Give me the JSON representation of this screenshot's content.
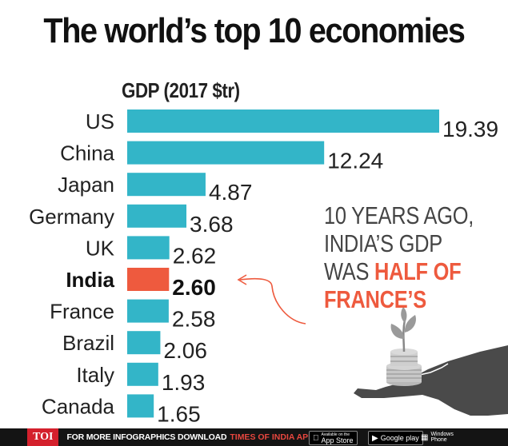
{
  "title": "The world’s top 10 economies",
  "chart_data": {
    "type": "bar",
    "orientation": "horizontal",
    "ylabel": "GDP (2017 $tr)",
    "categories": [
      "US",
      "China",
      "Japan",
      "Germany",
      "UK",
      "India",
      "France",
      "Brazil",
      "Italy",
      "Canada"
    ],
    "values": [
      19.39,
      12.24,
      4.87,
      3.68,
      2.62,
      2.6,
      2.58,
      2.06,
      1.93,
      1.65
    ],
    "value_labels": [
      "19.39",
      "12.24",
      "4.87",
      "3.68",
      "2.62",
      "2.60",
      "2.58",
      "2.06",
      "1.93",
      "1.65"
    ],
    "highlight": "India",
    "bar_color": "#33b5c8",
    "highlight_color": "#ee5a3e",
    "xlim": [
      0,
      19.39
    ]
  },
  "annotation": {
    "line1": "10 YEARS AGO,",
    "line2": "INDIA’S GDP",
    "line3_normal": "WAS ",
    "line3_highlight": "HALF OF",
    "line4_highlight": "FRANCE’S"
  },
  "footer": {
    "logo": "TOI",
    "text": "FOR MORE  INFOGRAPHICS DOWNLOAD",
    "brand": "TIMES OF INDIA APP",
    "appstore_small": "Available on the",
    "appstore": "App Store",
    "googleplay": "Google play",
    "windows": "Windows Phone"
  },
  "icons": [
    "sprout-in-coins-icon",
    "open-hand-icon",
    "curved-arrow-icon",
    "apple-icon",
    "play-icon",
    "windows-icon"
  ]
}
